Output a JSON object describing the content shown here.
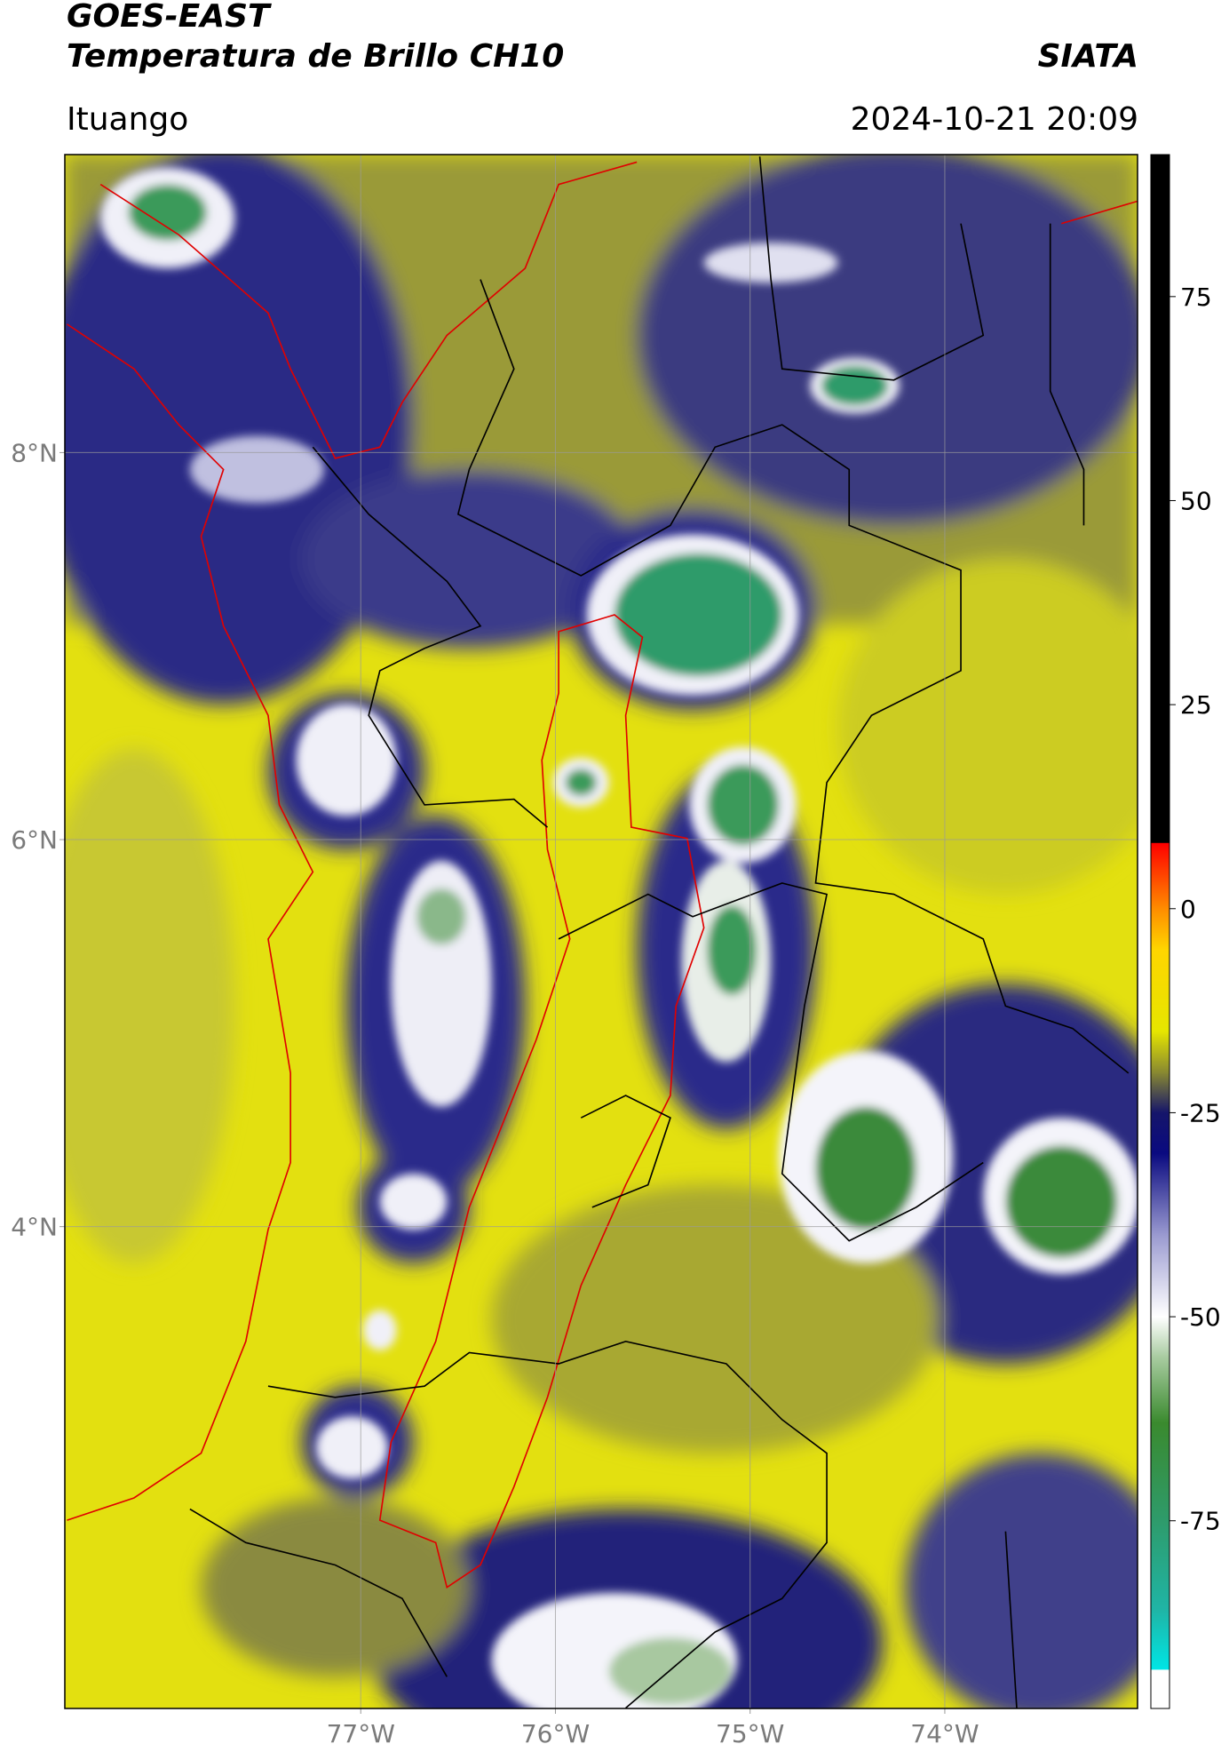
{
  "header": {
    "title": "GOES-EAST",
    "subtitle": "Temperatura de Brillo CH10",
    "brand": "SIATA",
    "location": "Ituango",
    "datetime": "2024-10-21 20:09"
  },
  "map": {
    "xlim": [
      -78.52,
      -73.01
    ],
    "ylim": [
      1.51,
      9.54
    ],
    "xticks": [
      {
        "value": -77,
        "label": "77°W"
      },
      {
        "value": -76,
        "label": "76°W"
      },
      {
        "value": -75,
        "label": "75°W"
      },
      {
        "value": -74,
        "label": "74°W"
      }
    ],
    "yticks": [
      {
        "value": 8,
        "label": "8°N"
      },
      {
        "value": 6,
        "label": "6°N"
      },
      {
        "value": 4,
        "label": "4°N"
      }
    ],
    "grid": true,
    "grid_color": "#9a9a9a"
  },
  "colorbar": {
    "lim": [
      -98,
      92.4
    ],
    "ticks": [
      75,
      50,
      25,
      0,
      -25,
      -50,
      -75
    ],
    "stops": [
      {
        "value": -98,
        "color": "#ffffff"
      },
      {
        "value": -93.3,
        "color": "#ffffff"
      },
      {
        "value": -93.2,
        "color": "#00e5e5"
      },
      {
        "value": -86,
        "color": "#1fb5a6"
      },
      {
        "value": -75,
        "color": "#2e9b6b"
      },
      {
        "value": -63,
        "color": "#3a8a2e"
      },
      {
        "value": -55,
        "color": "#a8cba0"
      },
      {
        "value": -50,
        "color": "#ffffff"
      },
      {
        "value": -40,
        "color": "#9a9ad0"
      },
      {
        "value": -30,
        "color": "#0a0a80"
      },
      {
        "value": -25,
        "color": "#15156a"
      },
      {
        "value": -20,
        "color": "#8a8a30"
      },
      {
        "value": -15,
        "color": "#e6e600"
      },
      {
        "value": -5,
        "color": "#ffd500"
      },
      {
        "value": 0,
        "color": "#ff8c00"
      },
      {
        "value": 8,
        "color": "#ff0000"
      },
      {
        "value": 8.1,
        "color": "#000000"
      },
      {
        "value": 92.4,
        "color": "#000000"
      }
    ]
  }
}
